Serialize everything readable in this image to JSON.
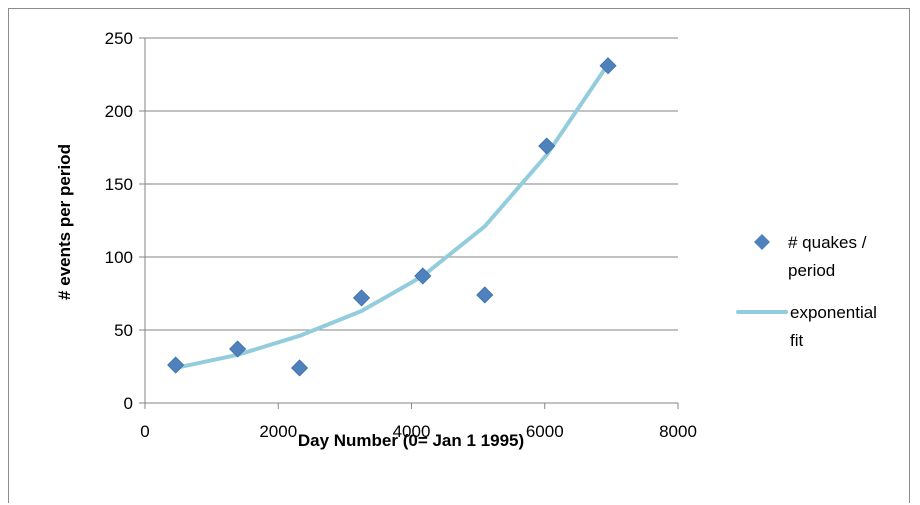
{
  "chart_data": {
    "type": "scatter",
    "title": "",
    "xlabel": "Day Number (0= Jan 1 1995)",
    "ylabel": "# events per period",
    "xlim": [
      0,
      8000
    ],
    "ylim": [
      0,
      250
    ],
    "x_ticks": [
      0,
      2000,
      4000,
      6000,
      8000
    ],
    "y_ticks": [
      0,
      50,
      100,
      150,
      200,
      250
    ],
    "grid": "horizontal",
    "legend_position": "right",
    "series": [
      {
        "name": "# quakes / period",
        "kind": "scatter",
        "marker": "diamond",
        "color": "#4f81bd",
        "x": [
          460,
          1390,
          2320,
          3250,
          4170,
          5100,
          6030,
          6950
        ],
        "y": [
          26,
          37,
          24,
          72,
          87,
          74,
          176,
          231
        ]
      },
      {
        "name": "exponential fit",
        "kind": "line",
        "color": "#93cddd",
        "x": [
          460,
          1390,
          2320,
          3250,
          4170,
          5100,
          6030,
          6950
        ],
        "y": [
          24,
          33,
          46,
          63,
          87,
          121,
          170,
          232
        ]
      }
    ]
  },
  "legend": {
    "scatter_label_line1": "# quakes /",
    "scatter_label_line2": "period",
    "line_label_line1": "exponential",
    "line_label_line2": "fit"
  }
}
